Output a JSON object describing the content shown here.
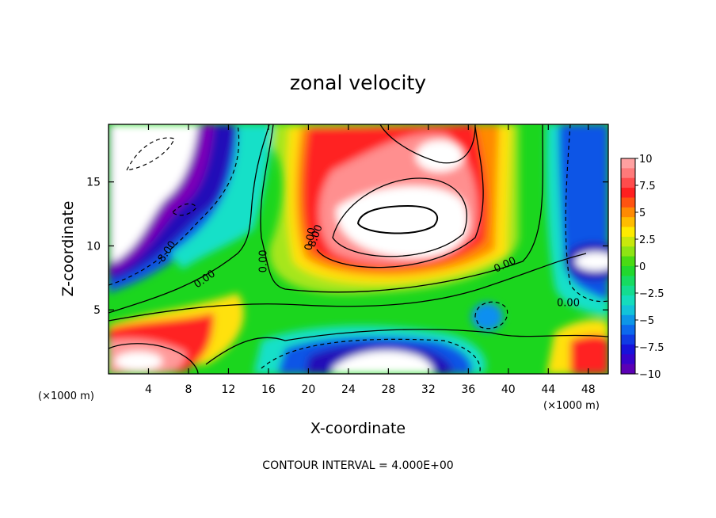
{
  "chart_data": {
    "type": "heatmap",
    "title": "zonal velocity",
    "xlabel": "X-coordinate",
    "ylabel": "Z-coordinate",
    "x_unit_left": "(×1000 m)",
    "x_unit_right": "(×1000 m)",
    "xlim": [
      0,
      50
    ],
    "ylim": [
      0,
      19.5
    ],
    "x_ticks": [
      4,
      8,
      12,
      16,
      20,
      24,
      28,
      32,
      36,
      40,
      44,
      48
    ],
    "y_ticks": [
      5,
      10,
      15
    ],
    "colorbar": {
      "range": [
        -10,
        10
      ],
      "tick_values": [
        10,
        7.5,
        5,
        2.5,
        0,
        -2.5,
        -5,
        -7.5,
        -10
      ],
      "tick_labels": [
        "10",
        "7.5",
        "5",
        "2.5",
        "0",
        "−2.5",
        "−5",
        "−7.5",
        "−10"
      ]
    },
    "contour_labels": [
      {
        "text": "0.00",
        "x": 20.5,
        "z": 10.5,
        "rotate": -80
      },
      {
        "text": "0.00",
        "x": 15.8,
        "z": 8.8,
        "rotate": -90
      },
      {
        "text": "0.00",
        "x": 9.8,
        "z": 7.2,
        "rotate": -35
      },
      {
        "text": "0.00",
        "x": 39.8,
        "z": 8.3,
        "rotate": -25
      },
      {
        "text": "0.00",
        "x": 46.0,
        "z": 5.3,
        "rotate": 0
      },
      {
        "text": "-8.00",
        "x": 6.0,
        "z": 9.3,
        "rotate": -55
      },
      {
        "text": "8.00",
        "x": 21.0,
        "z": 10.7,
        "rotate": -70
      }
    ],
    "footer": "CONTOUR INTERVAL = 4.000E+00",
    "grid": false
  }
}
